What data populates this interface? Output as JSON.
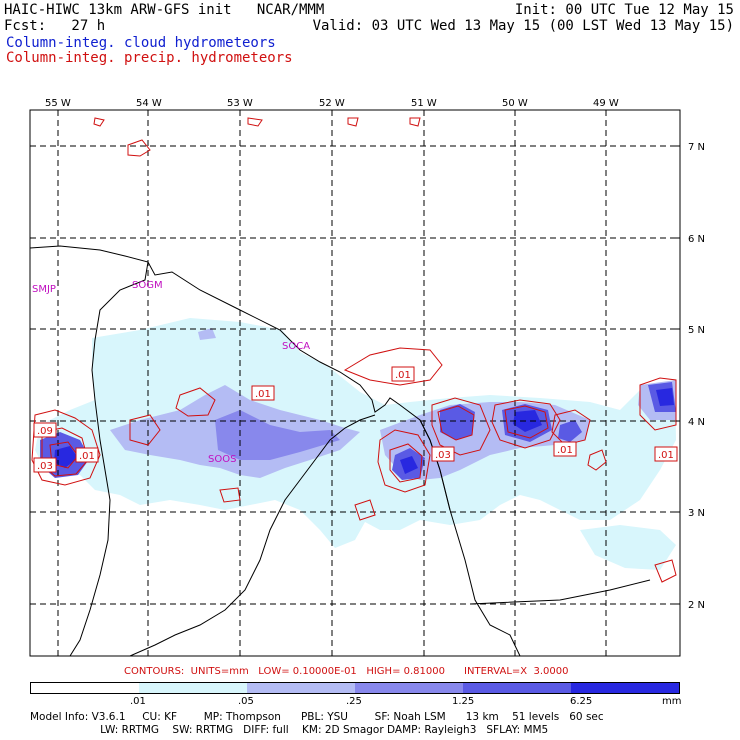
{
  "header": {
    "line1_left": "HAIC-HIWC 13km ARW-GFS init   NCAR/MMM",
    "line1_right": "Init: 00 UTC Tue 12 May 15",
    "line2_left": "Fcst:   27 h",
    "line2_right": "Valid: 03 UTC Wed 13 May 15 (00 LST Wed 13 May 15)",
    "line3": "Column-integ. cloud hydrometeors",
    "line4": "Column-integ. precip. hydrometeors"
  },
  "colors": {
    "cloud_text": "#1020d0",
    "precip_text": "#d01010",
    "station_text": "#c010c0",
    "fill_levels": [
      "#ffffff",
      "#d8f6fc",
      "#b4bcf4",
      "#8888ec",
      "#5a5ae4",
      "#2828e0"
    ]
  },
  "map": {
    "lon_labels": [
      "55 W",
      "54 W",
      "53 W",
      "52 W",
      "51 W",
      "50 W",
      "49 W"
    ],
    "lat_labels": [
      "7 N",
      "6 N",
      "5 N",
      "4 N",
      "3 N",
      "2 N"
    ],
    "stations": [
      "SMJP",
      "SOGM",
      "SOCA",
      "SOOS"
    ],
    "contour_labels": [
      ".01",
      ".01",
      ".01",
      ".09",
      ".03",
      ".01",
      ".03",
      ".01",
      ".01"
    ]
  },
  "colorbar": {
    "contours_line": "CONTOURS:  UNITS=mm   LOW= 0.10000E-01   HIGH= 0.81000      INTERVAL=X  3.0000",
    "tick_labels": [
      ".01",
      ".05",
      ".25",
      "1.25",
      "6.25"
    ],
    "units": "mm"
  },
  "model_info": {
    "line1": "Model Info: V3.6.1     CU: KF        MP: Thompson      PBL: YSU        SF: Noah LSM      13 km    51 levels   60 sec",
    "line2": "                     LW: RRTMG    SW: RRTMG   DIFF: full    KM: 2D Smagor DAMP: Rayleigh3   SFLAY: MM5"
  }
}
